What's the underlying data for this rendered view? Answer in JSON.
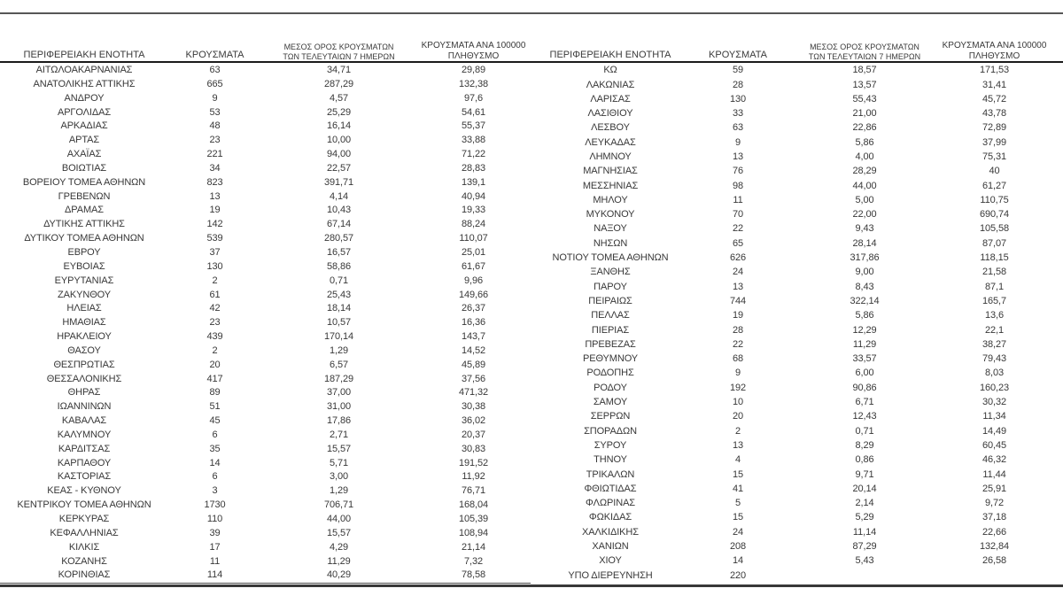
{
  "report": {
    "column_headers": [
      "ΠΕΡΙΦΕΡΕΙΑΚΗ ΕΝΟΤΗΤΑ",
      "ΚΡΟΥΣΜΑΤΑ",
      "ΜΕΣΟΣ ΟΡΟΣ ΚΡΟΥΣΜΑΤΩΝ\nΤΩΝ ΤΕΛΕΥΤΑΙΩΝ 7 ΗΜΕΡΩΝ",
      "ΚΡΟΥΣΜΑΤΑ ΑΝΑ 100000\nΠΛΗΘΥΣΜΟ"
    ],
    "tables": [
      {
        "rows": [
          [
            "ΑΙΤΩΛΟΑΚΑΡΝΑΝΙΑΣ",
            "63",
            "34,71",
            "29,89"
          ],
          [
            "ΑΝΑΤΟΛΙΚΗΣ ΑΤΤΙΚΗΣ",
            "665",
            "287,29",
            "132,38"
          ],
          [
            "ΑΝΔΡΟΥ",
            "9",
            "4,57",
            "97,6"
          ],
          [
            "ΑΡΓΟΛΙΔΑΣ",
            "53",
            "25,29",
            "54,61"
          ],
          [
            "ΑΡΚΑΔΙΑΣ",
            "48",
            "16,14",
            "55,37"
          ],
          [
            "ΑΡΤΑΣ",
            "23",
            "10,00",
            "33,88"
          ],
          [
            "ΑΧΑΪΑΣ",
            "221",
            "94,00",
            "71,22"
          ],
          [
            "ΒΟΙΩΤΙΑΣ",
            "34",
            "22,57",
            "28,83"
          ],
          [
            "ΒΟΡΕΙΟΥ ΤΟΜΕΑ ΑΘΗΝΩΝ",
            "823",
            "391,71",
            "139,1"
          ],
          [
            "ΓΡΕΒΕΝΩΝ",
            "13",
            "4,14",
            "40,94"
          ],
          [
            "ΔΡΑΜΑΣ",
            "19",
            "10,43",
            "19,33"
          ],
          [
            "ΔΥΤΙΚΗΣ ΑΤΤΙΚΗΣ",
            "142",
            "67,14",
            "88,24"
          ],
          [
            "ΔΥΤΙΚΟΥ ΤΟΜΕΑ ΑΘΗΝΩΝ",
            "539",
            "280,57",
            "110,07"
          ],
          [
            "ΕΒΡΟΥ",
            "37",
            "16,57",
            "25,01"
          ],
          [
            "ΕΥΒΟΙΑΣ",
            "130",
            "58,86",
            "61,67"
          ],
          [
            "ΕΥΡΥΤΑΝΙΑΣ",
            "2",
            "0,71",
            "9,96"
          ],
          [
            "ΖΑΚΥΝΘΟΥ",
            "61",
            "25,43",
            "149,66"
          ],
          [
            "ΗΛΕΙΑΣ",
            "42",
            "18,14",
            "26,37"
          ],
          [
            "ΗΜΑΘΙΑΣ",
            "23",
            "10,57",
            "16,36"
          ],
          [
            "ΗΡΑΚΛΕΙΟΥ",
            "439",
            "170,14",
            "143,7"
          ],
          [
            "ΘΑΣΟΥ",
            "2",
            "1,29",
            "14,52"
          ],
          [
            "ΘΕΣΠΡΩΤΙΑΣ",
            "20",
            "6,57",
            "45,89"
          ],
          [
            "ΘΕΣΣΑΛΟΝΙΚΗΣ",
            "417",
            "187,29",
            "37,56"
          ],
          [
            "ΘΗΡΑΣ",
            "89",
            "37,00",
            "471,32"
          ],
          [
            "ΙΩΑΝΝΙΝΩΝ",
            "51",
            "31,00",
            "30,38"
          ],
          [
            "ΚΑΒΑΛΑΣ",
            "45",
            "17,86",
            "36,02"
          ],
          [
            "ΚΑΛΥΜΝΟΥ",
            "6",
            "2,71",
            "20,37"
          ],
          [
            "ΚΑΡΔΙΤΣΑΣ",
            "35",
            "15,57",
            "30,83"
          ],
          [
            "ΚΑΡΠΑΘΟΥ",
            "14",
            "5,71",
            "191,52"
          ],
          [
            "ΚΑΣΤΟΡΙΑΣ",
            "6",
            "3,00",
            "11,92"
          ],
          [
            "ΚΕΑΣ - ΚΥΘΝΟΥ",
            "3",
            "1,29",
            "76,71"
          ],
          [
            "ΚΕΝΤΡΙΚΟΥ ΤΟΜΕΑ ΑΘΗΝΩΝ",
            "1730",
            "706,71",
            "168,04"
          ],
          [
            "ΚΕΡΚΥΡΑΣ",
            "110",
            "44,00",
            "105,39"
          ],
          [
            "ΚΕΦΑΛΛΗΝΙΑΣ",
            "39",
            "15,57",
            "108,94"
          ],
          [
            "ΚΙΛΚΙΣ",
            "17",
            "4,29",
            "21,14"
          ],
          [
            "ΚΟΖΑΝΗΣ",
            "11",
            "11,29",
            "7,32"
          ],
          [
            "ΚΟΡΙΝΘΙΑΣ",
            "114",
            "40,29",
            "78,58"
          ]
        ]
      },
      {
        "rows": [
          [
            "ΚΩ",
            "59",
            "18,57",
            "171,53"
          ],
          [
            "ΛΑΚΩΝΙΑΣ",
            "28",
            "13,57",
            "31,41"
          ],
          [
            "ΛΑΡΙΣΑΣ",
            "130",
            "55,43",
            "45,72"
          ],
          [
            "ΛΑΣΙΘΙΟΥ",
            "33",
            "21,00",
            "43,78"
          ],
          [
            "ΛΕΣΒΟΥ",
            "63",
            "22,86",
            "72,89"
          ],
          [
            "ΛΕΥΚΑΔΑΣ",
            "9",
            "5,86",
            "37,99"
          ],
          [
            "ΛΗΜΝΟΥ",
            "13",
            "4,00",
            "75,31"
          ],
          [
            "ΜΑΓΝΗΣΙΑΣ",
            "76",
            "28,29",
            "40"
          ],
          [
            "ΜΕΣΣΗΝΙΑΣ",
            "98",
            "44,00",
            "61,27"
          ],
          [
            "ΜΗΛΟΥ",
            "11",
            "5,00",
            "110,75"
          ],
          [
            "ΜΥΚΟΝΟΥ",
            "70",
            "22,00",
            "690,74"
          ],
          [
            "ΝΑΞΟΥ",
            "22",
            "9,43",
            "105,58"
          ],
          [
            "ΝΗΣΩΝ",
            "65",
            "28,14",
            "87,07"
          ],
          [
            "ΝΟΤΙΟΥ ΤΟΜΕΑ ΑΘΗΝΩΝ",
            "626",
            "317,86",
            "118,15"
          ],
          [
            "ΞΑΝΘΗΣ",
            "24",
            "9,00",
            "21,58"
          ],
          [
            "ΠΑΡΟΥ",
            "13",
            "8,43",
            "87,1"
          ],
          [
            "ΠΕΙΡΑΙΩΣ",
            "744",
            "322,14",
            "165,7"
          ],
          [
            "ΠΕΛΛΑΣ",
            "19",
            "5,86",
            "13,6"
          ],
          [
            "ΠΙΕΡΙΑΣ",
            "28",
            "12,29",
            "22,1"
          ],
          [
            "ΠΡΕΒΕΖΑΣ",
            "22",
            "11,29",
            "38,27"
          ],
          [
            "ΡΕΘΥΜΝΟΥ",
            "68",
            "33,57",
            "79,43"
          ],
          [
            "ΡΟΔΟΠΗΣ",
            "9",
            "6,00",
            "8,03"
          ],
          [
            "ΡΟΔΟΥ",
            "192",
            "90,86",
            "160,23"
          ],
          [
            "ΣΑΜΟΥ",
            "10",
            "6,71",
            "30,32"
          ],
          [
            "ΣΕΡΡΩΝ",
            "20",
            "12,43",
            "11,34"
          ],
          [
            "ΣΠΟΡΑΔΩΝ",
            "2",
            "0,71",
            "14,49"
          ],
          [
            "ΣΥΡΟΥ",
            "13",
            "8,29",
            "60,45"
          ],
          [
            "ΤΗΝΟΥ",
            "4",
            "0,86",
            "46,32"
          ],
          [
            "ΤΡΙΚΑΛΩΝ",
            "15",
            "9,71",
            "11,44"
          ],
          [
            "ΦΘΙΩΤΙΔΑΣ",
            "41",
            "20,14",
            "25,91"
          ],
          [
            "ΦΛΩΡΙΝΑΣ",
            "5",
            "2,14",
            "9,72"
          ],
          [
            "ΦΩΚΙΔΑΣ",
            "15",
            "5,29",
            "37,18"
          ],
          [
            "ΧΑΛΚΙΔΙΚΗΣ",
            "24",
            "11,14",
            "22,66"
          ],
          [
            "ΧΑΝΙΩΝ",
            "208",
            "87,29",
            "132,84"
          ],
          [
            "ΧΙΟΥ",
            "14",
            "5,43",
            "26,58"
          ],
          [
            "ΥΠΟ ΔΙΕΡΕΥΝΗΣΗ",
            "220",
            "",
            ""
          ]
        ]
      }
    ]
  }
}
